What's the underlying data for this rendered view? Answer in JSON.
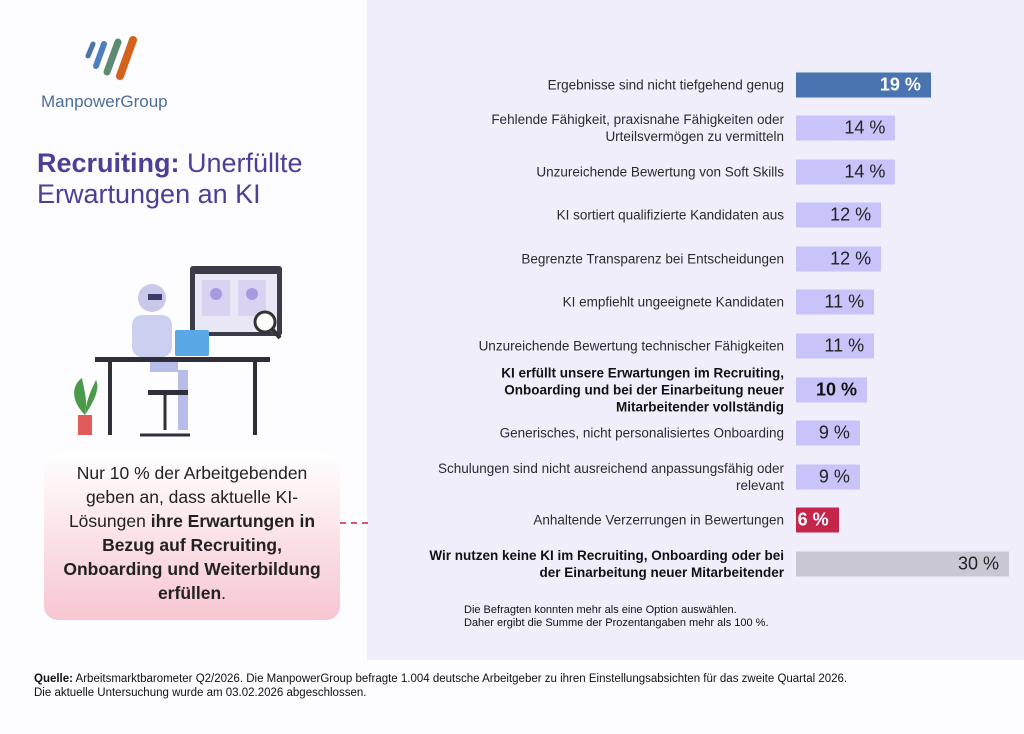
{
  "brand": {
    "name": "ManpowerGroup",
    "logo_colors": [
      "#4a74b0",
      "#4c7fbf",
      "#5e8a74",
      "#d4621a"
    ]
  },
  "title": {
    "bold": "Recruiting:",
    "rest": " Unerfüllte",
    "line2": "Erwartungen an KI"
  },
  "callout": {
    "plain1": "Nur 10 % der Arbeitgebenden geben an, dass aktuelle KI-Lösungen ",
    "bold": "ihre Erwartungen in Bezug auf Recruiting, Onboarding und Weiterbildung erfüllen",
    "plain2": "."
  },
  "chart_data": {
    "type": "bar",
    "orientation": "horizontal",
    "unit": "%",
    "categories": [
      "Ergebnisse sind nicht tiefgehend genug",
      "Fehlende Fähigkeit, praxisnahe Fähigkeiten oder Urteilsvermögen zu vermitteln",
      "Unzureichende Bewertung von Soft Skills",
      "KI sortiert qualifizierte Kandidaten aus",
      "Begrenzte Transparenz bei Entscheidungen",
      "KI empfiehlt ungeeignete Kandidaten",
      "Unzureichende Bewertung technischer Fähigkeiten",
      "KI erfüllt unsere Erwartungen im Recruiting, Onboarding und bei der Einarbeitung neuer Mitarbeitender vollständig",
      "Generisches, nicht personalisiertes Onboarding",
      "Schulungen sind nicht ausreichend anpassungsfähig oder relevant",
      "Anhaltende Verzerrungen in Bewertungen",
      "Wir nutzen keine KI im Recruiting, Onboarding oder bei der Einarbeitung neuer Mitarbeitender"
    ],
    "values": [
      19,
      14,
      14,
      12,
      12,
      11,
      11,
      10,
      9,
      9,
      6,
      30
    ],
    "value_labels": [
      "19 %",
      "14 %",
      "14 %",
      "12 %",
      "12 %",
      "11 %",
      "11 %",
      "10 %",
      "9 %",
      "9 %",
      "6 %",
      "30 %"
    ],
    "bold": [
      false,
      false,
      false,
      false,
      false,
      false,
      false,
      true,
      false,
      false,
      false,
      true
    ],
    "colors": [
      "#4a74b0",
      "#c8c3f8",
      "#c8c3f8",
      "#c8c3f8",
      "#c8c3f8",
      "#c8c3f8",
      "#c8c3f8",
      "#c8c3f8",
      "#c8c3f8",
      "#c8c3f8",
      "#c3264a",
      "#c9c7d2"
    ],
    "label_colors": [
      "#ffffff",
      "#222222",
      "#222222",
      "#222222",
      "#222222",
      "#222222",
      "#222222",
      "#111111",
      "#222222",
      "#222222",
      "#ffffff",
      "#222222"
    ]
  },
  "note": {
    "line1": "Die Befragten konnten mehr als eine Option auswählen.",
    "line2": "Daher ergibt die Summe der Prozentangaben mehr als 100 %."
  },
  "source": {
    "label": "Quelle:",
    "text": " Arbeitsmarktbarometer Q2/2026. Die ManpowerGroup befragte 1.004 deutsche Arbeitgeber zu ihren Einstellungsabsichten für das zweite Quartal 2026.",
    "line2": "Die aktuelle Untersuchung wurde am 03.02.2026 abgeschlossen."
  }
}
